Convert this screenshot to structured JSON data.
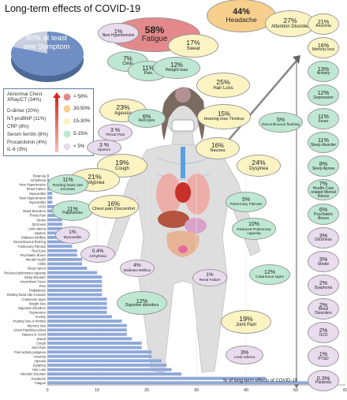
{
  "title": "Long-term effects of COVID-19",
  "summary": {
    "value": "80%",
    "label_line1": "80% at least",
    "label_line2": "one Symptom"
  },
  "legend": {
    "title_line1": "Abnormal Chest",
    "title_line2": "XRay/CT (34%)",
    "labs": [
      "D-dimer (20%)",
      "NT-proBNP (11%)",
      "CRP (8%)",
      "Serum ferritin (8%)",
      "Procalcitonin (4%)",
      "IL-6 (3%)"
    ],
    "color_scale": [
      {
        "label": "> 50%",
        "color": "#e3898b"
      },
      {
        "label": "30-50%",
        "color": "#f7cf8c"
      },
      {
        "label": "15-30%",
        "color": "#fbf4c2"
      },
      {
        "label": "5-15%",
        "color": "#bfe8d4"
      },
      {
        "label": "< 5%",
        "color": "#e8dcee"
      }
    ]
  },
  "body_symptoms": [
    {
      "pct": "58%",
      "label": "Fatigue",
      "cat": "gt50"
    },
    {
      "pct": "44%",
      "label": "Headache",
      "cat": "30to50"
    },
    {
      "pct": "27%",
      "label": "Attention Disorder",
      "cat": "15to30"
    },
    {
      "pct": "1%",
      "label": "New Hypertension",
      "cat": "lt5"
    },
    {
      "pct": "7%",
      "label": "Chills",
      "cat": "5to15"
    },
    {
      "pct": "11%",
      "label": "Pain",
      "cat": "5to15"
    },
    {
      "pct": "12%",
      "label": "Weight loss",
      "cat": "5to15"
    },
    {
      "pct": "17%",
      "label": "Sweat",
      "cat": "15to30"
    },
    {
      "pct": "25%",
      "label": "Hair Loss",
      "cat": "15to30"
    },
    {
      "pct": "23%",
      "label": "Ageusia",
      "cat": "15to30"
    },
    {
      "pct": "6%",
      "label": "Red eyes",
      "cat": "5to15"
    },
    {
      "pct": "15%",
      "label": "Hearing loss Tinnitus",
      "cat": "15to30"
    },
    {
      "pct": "5%",
      "label": "Discontinuous flushing",
      "cat": "5to15"
    },
    {
      "pct": "3 %",
      "label": "Throat Pain",
      "cat": "lt5"
    },
    {
      "pct": "3 %",
      "label": "Sputum",
      "cat": "lt5"
    },
    {
      "pct": "19%",
      "label": "Cough",
      "cat": "15to30"
    },
    {
      "pct": "16%",
      "label": "Nausea",
      "cat": "15to30"
    },
    {
      "pct": "24%",
      "label": "Dyspnea",
      "cat": "15to30"
    },
    {
      "pct": "21%",
      "label": "Polypnea",
      "cat": "15to30"
    },
    {
      "pct": "11%",
      "label": "Resting heart rate increase",
      "cat": "5to15"
    },
    {
      "pct": "11%",
      "label": "Palpitations",
      "cat": "5to15"
    },
    {
      "pct": "16%",
      "label": "Chest pain Discomfort",
      "cat": "15to30"
    },
    {
      "pct": "5%",
      "label": "Pulmonary Fibrosis",
      "cat": "5to15"
    },
    {
      "pct": "10%",
      "label": "Reduced Pulmonary capacity",
      "cat": "5to15"
    },
    {
      "pct": "1%",
      "label": "Myocarditis",
      "cat": "lt5"
    },
    {
      "pct": "0.4%",
      "label": "Arrhythmia",
      "cat": "lt5"
    },
    {
      "pct": "4%",
      "label": "Diabetes Mellitus",
      "cat": "lt5"
    },
    {
      "pct": "1%",
      "label": "Renal Failure",
      "cat": "lt5"
    },
    {
      "pct": "12%",
      "label": "Cutaneous signs",
      "cat": "5to15"
    },
    {
      "pct": "12%",
      "label": "Digestive disorders",
      "cat": "5to15"
    },
    {
      "pct": "19%",
      "label": "Joint Pain",
      "cat": "15to30"
    },
    {
      "pct": "3%",
      "label": "Limb edema",
      "cat": "lt5"
    }
  ],
  "right_column": [
    {
      "pct": "21%",
      "label": "Anosmia",
      "cat": "15to30"
    },
    {
      "pct": "16%",
      "label": "Memory loss",
      "cat": "15to30"
    },
    {
      "pct": "13%",
      "label": "Anxiety",
      "cat": "5to15"
    },
    {
      "pct": "12%",
      "label": "Depression",
      "cat": "5to15"
    },
    {
      "pct": "11%",
      "label": "Fever",
      "cat": "5to15"
    },
    {
      "pct": "11%",
      "label": "Sleep disorder",
      "cat": "5to15"
    },
    {
      "pct": "8%",
      "label": "Sleep Apnea",
      "cat": "5to15"
    },
    {
      "pct": "7%",
      "label": "Health Care related Mental Illness",
      "cat": "5to15"
    },
    {
      "pct": "6%",
      "label": "Psychiatric illness",
      "cat": "5to15"
    },
    {
      "pct": "3%",
      "label": "Dizziness",
      "cat": "lt5"
    },
    {
      "pct": "3%",
      "label": "Stroke",
      "cat": "lt5"
    },
    {
      "pct": "2%",
      "label": "Dysphoria",
      "cat": "lt5"
    },
    {
      "pct": "2%",
      "label": "Mood Disorders",
      "cat": "lt5"
    },
    {
      "pct": "2%",
      "label": "OCD",
      "cat": "lt5"
    },
    {
      "pct": "1%",
      "label": "PTSD",
      "cat": "lt5"
    },
    {
      "pct": "0.3%",
      "label": "Paranoia",
      "cat": "lt5"
    }
  ],
  "chart_data": {
    "type": "bar",
    "orientation": "horizontal",
    "xlabel": "% of long-term effects of COVID-19",
    "xlim": [
      0,
      60
    ],
    "xticks": [
      0,
      10,
      20,
      30,
      40,
      50,
      60
    ],
    "grid": true,
    "categories": [
      "Paranoia",
      "Arrhythmia",
      "New Hypertension",
      "Renal Failure",
      "Myocarditis",
      "New Hypertension",
      "Myocarditis",
      "OCD",
      "Mood Disorders",
      "Throat Pain",
      "Stroke",
      "Dizziness",
      "Limb edema",
      "Sputum",
      "Diabetes Mellitus",
      "Discontinuous flushing",
      "Pulmonary Fibrosis",
      "Red Eyes",
      "Psychiatric illness",
      "Mental Health",
      "Chills",
      "Sleep Apnea",
      "Reduced pulmonary capacity",
      "Sleep Disorder",
      "Intermittent Fever",
      "Pain",
      "Palpitations",
      "Resting heart rate increase",
      "Cutaneous signs",
      "Weight loss",
      "Digestive disorders",
      "Depression",
      "Anxiety",
      "Hearing loss or tinnitus",
      "Memory loss",
      "Chest Pain/Discomfort",
      "Nausea or Vomit",
      "Sweat",
      "Cough",
      "Joint Pain",
      "Post-activity polypnea",
      "Anosmia",
      "Ageusia",
      "Dyspnea",
      "Hair Loss",
      "Attention Disorder",
      "Headache",
      "Fatigue"
    ],
    "values": [
      0.3,
      0.4,
      1,
      1,
      1,
      1,
      1,
      2,
      2,
      3,
      3,
      3,
      3,
      3,
      4,
      5,
      5,
      6,
      6,
      7,
      7,
      8,
      10,
      11,
      11,
      11,
      11,
      11,
      12,
      12,
      12,
      12,
      13,
      15,
      16,
      16,
      16,
      17,
      19,
      19,
      21,
      21,
      23,
      24,
      25,
      27,
      44,
      58
    ],
    "color": "#8fa8d9"
  }
}
